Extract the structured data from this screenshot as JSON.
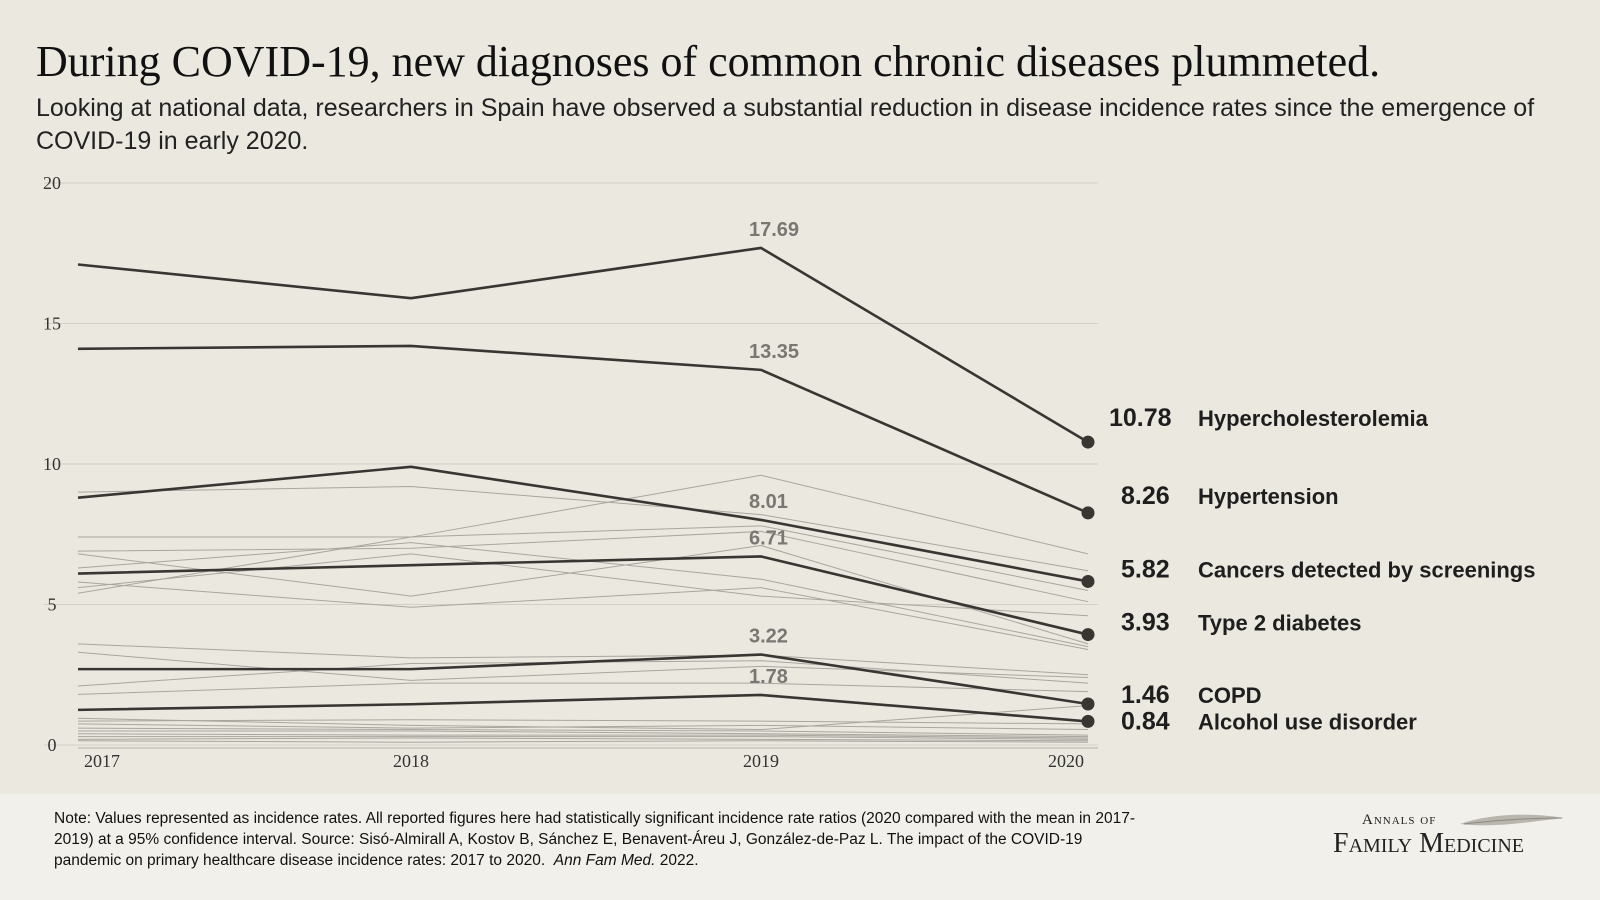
{
  "title": "During COVID-19, new diagnoses of common chronic diseases plummeted.",
  "subtitle": "Looking at national data, researchers in Spain have observed a substantial reduction in disease incidence rates since the emergence of COVID-19 in early 2020.",
  "chart_data": {
    "type": "line",
    "x": [
      "2017",
      "2018",
      "2019",
      "2020"
    ],
    "ylim": [
      0,
      20
    ],
    "yticks": [
      0,
      5,
      10,
      15,
      20
    ],
    "grid": true,
    "series": [
      {
        "name": "Hypercholesterolemia",
        "values": [
          17.1,
          15.9,
          17.69,
          10.78
        ],
        "label_2019": "17.69",
        "label_2020": "10.78",
        "highlight": true
      },
      {
        "name": "Hypertension",
        "values": [
          14.1,
          14.2,
          13.35,
          8.26
        ],
        "label_2019": "13.35",
        "label_2020": "8.26",
        "highlight": true
      },
      {
        "name": "Cancers detected by screenings",
        "values": [
          8.8,
          9.9,
          8.01,
          5.82
        ],
        "label_2019": "8.01",
        "label_2020": "5.82",
        "highlight": true
      },
      {
        "name": "Type 2 diabetes",
        "values": [
          6.1,
          6.4,
          6.71,
          3.93
        ],
        "label_2019": "6.71",
        "label_2020": "3.93",
        "highlight": true
      },
      {
        "name": "COPD",
        "values": [
          2.7,
          2.7,
          3.22,
          1.46
        ],
        "label_2019": "3.22",
        "label_2020": "1.46",
        "highlight": true
      },
      {
        "name": "Alcohol use disorder",
        "values": [
          1.25,
          1.45,
          1.78,
          0.84
        ],
        "label_2019": "1.78",
        "label_2020": "0.84",
        "highlight": true
      }
    ],
    "background_series": [
      [
        9.0,
        9.2,
        8.2,
        6.2
      ],
      [
        5.4,
        7.4,
        9.6,
        6.8
      ],
      [
        7.4,
        7.4,
        7.8,
        5.5
      ],
      [
        6.9,
        7.0,
        7.6,
        5.1
      ],
      [
        6.8,
        5.3,
        7.1,
        3.6
      ],
      [
        6.3,
        7.2,
        5.9,
        3.5
      ],
      [
        5.8,
        4.9,
        5.6,
        3.4
      ],
      [
        5.6,
        6.8,
        5.3,
        4.6
      ],
      [
        3.6,
        3.1,
        3.2,
        2.5
      ],
      [
        3.3,
        2.3,
        2.8,
        2.4
      ],
      [
        2.1,
        2.9,
        3.0,
        2.2
      ],
      [
        1.8,
        2.2,
        2.2,
        1.9
      ],
      [
        0.95,
        0.7,
        0.55,
        1.4
      ],
      [
        0.85,
        0.9,
        0.85,
        0.75
      ],
      [
        0.75,
        0.6,
        0.7,
        0.55
      ],
      [
        0.6,
        0.55,
        0.5,
        0.35
      ],
      [
        0.5,
        0.5,
        0.4,
        0.3
      ],
      [
        0.4,
        0.35,
        0.35,
        0.25
      ],
      [
        0.3,
        0.3,
        0.3,
        0.2
      ],
      [
        0.2,
        0.25,
        0.2,
        0.15
      ],
      [
        0.15,
        0.1,
        0.15,
        0.1
      ]
    ]
  },
  "note_text": "Note: Values represented as incidence rates. All reported figures here had statistically significant incidence rate ratios (2020 compared with the mean in 2017-2019) at a 95% confidence interval. Source:  Sisó-Almirall A, Kostov B, Sánchez E, Benavent-Áreu J, González-de-Paz L. The impact of the COVID-19 pandemic on primary healthcare disease incidence rates: 2017 to 2020.",
  "note_journal": "Ann Fam Med.",
  "note_year": "2022.",
  "logo": {
    "line1": "Annals of",
    "line2": "Family Medicine"
  },
  "colors": {
    "background": "#ebe8df",
    "highlight_line": "#3a3532",
    "background_line": "#a9a6a0",
    "label_gray": "#7a7773",
    "grid": "#d2cfc8"
  }
}
